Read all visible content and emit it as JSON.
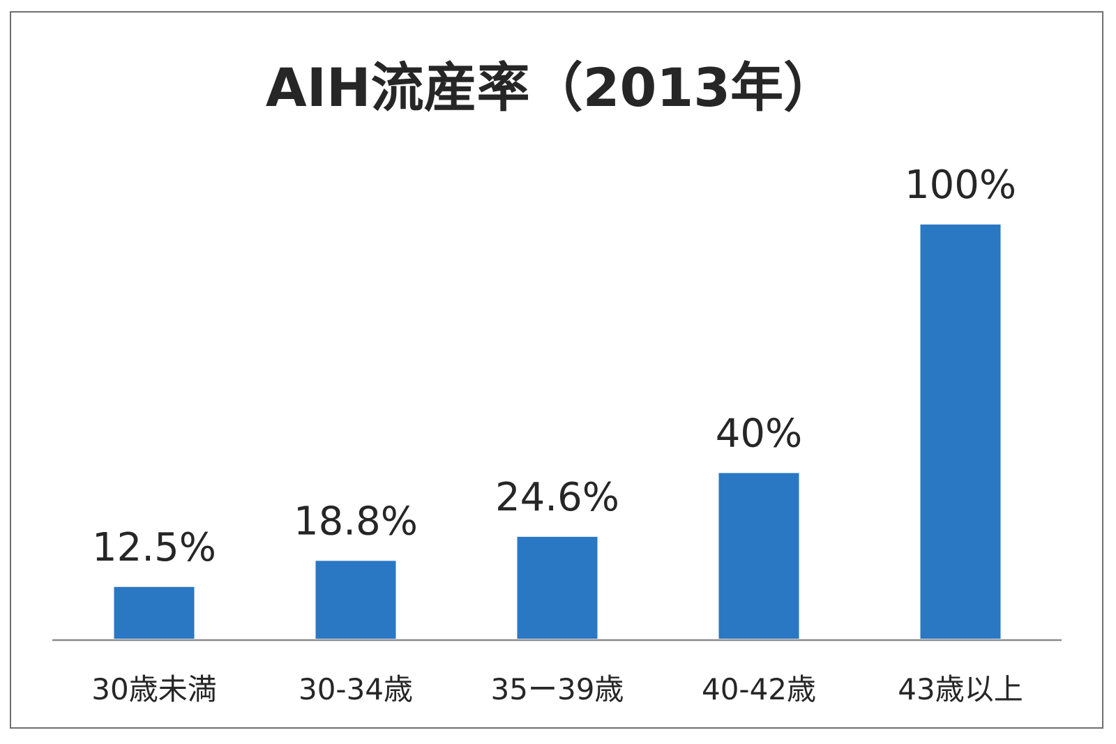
{
  "chart_data": {
    "type": "bar",
    "title": "AIH流産率（2013年）",
    "categories": [
      "30歳未満",
      "30-34歳",
      "35ー39歳",
      "40-42歳",
      "43歳以上"
    ],
    "values": [
      12.5,
      18.8,
      24.6,
      40,
      100
    ],
    "data_labels": [
      "12.5%",
      "18.8%",
      "24.6%",
      "40%",
      "100%"
    ],
    "ylim": [
      0,
      100
    ],
    "grid": false,
    "legend": "none",
    "bar_color": "#2a77c4"
  }
}
